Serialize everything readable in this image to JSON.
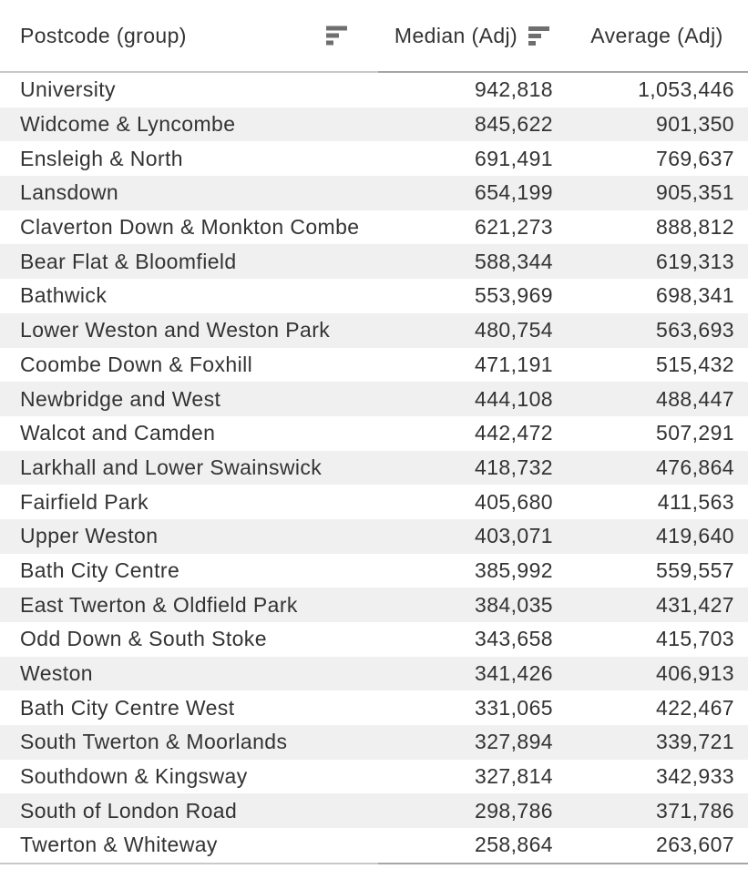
{
  "table": {
    "columns": [
      {
        "label": "Postcode (group)",
        "has_sort_icon": true,
        "sort_icon": "sort-descending"
      },
      {
        "label": "Median (Adj)",
        "has_sort_icon": true,
        "sort_icon": "sort-descending"
      },
      {
        "label": "Average (Adj)",
        "has_sort_icon": false
      }
    ],
    "rows": [
      {
        "name": "University",
        "median": "942,818",
        "average": "1,053,446"
      },
      {
        "name": "Widcome & Lyncombe",
        "median": "845,622",
        "average": "901,350"
      },
      {
        "name": "Ensleigh & North",
        "median": "691,491",
        "average": "769,637"
      },
      {
        "name": "Lansdown",
        "median": "654,199",
        "average": "905,351"
      },
      {
        "name": "Claverton Down & Monkton Combe",
        "median": "621,273",
        "average": "888,812"
      },
      {
        "name": "Bear Flat & Bloomfield",
        "median": "588,344",
        "average": "619,313"
      },
      {
        "name": "Bathwick",
        "median": "553,969",
        "average": "698,341"
      },
      {
        "name": "Lower Weston and Weston Park",
        "median": "480,754",
        "average": "563,693"
      },
      {
        "name": "Coombe Down & Foxhill",
        "median": "471,191",
        "average": "515,432"
      },
      {
        "name": "Newbridge and West",
        "median": "444,108",
        "average": "488,447"
      },
      {
        "name": "Walcot and Camden",
        "median": "442,472",
        "average": "507,291"
      },
      {
        "name": "Larkhall and Lower Swainswick",
        "median": "418,732",
        "average": "476,864"
      },
      {
        "name": "Fairfield Park",
        "median": "405,680",
        "average": "411,563"
      },
      {
        "name": "Upper Weston",
        "median": "403,071",
        "average": "419,640"
      },
      {
        "name": "Bath City Centre",
        "median": "385,992",
        "average": "559,557"
      },
      {
        "name": "East Twerton & Oldfield Park",
        "median": "384,035",
        "average": "431,427"
      },
      {
        "name": "Odd Down & South Stoke",
        "median": "343,658",
        "average": "415,703"
      },
      {
        "name": "Weston",
        "median": "341,426",
        "average": "406,913"
      },
      {
        "name": "Bath City Centre West",
        "median": "331,065",
        "average": "422,467"
      },
      {
        "name": "South Twerton & Moorlands",
        "median": "327,894",
        "average": "339,721"
      },
      {
        "name": "Southdown & Kingsway",
        "median": "327,814",
        "average": "342,933"
      },
      {
        "name": "South of London Road",
        "median": "298,786",
        "average": "371,786"
      },
      {
        "name": "Twerton & Whiteway",
        "median": "258,864",
        "average": "263,607"
      }
    ]
  },
  "chart_data": {
    "type": "table",
    "columns": [
      "Postcode (group)",
      "Median (Adj)",
      "Average (Adj)"
    ],
    "sort": {
      "column": "Median (Adj)",
      "direction": "descending"
    },
    "categories": [
      "University",
      "Widcome & Lyncombe",
      "Ensleigh & North",
      "Lansdown",
      "Claverton Down & Monkton Combe",
      "Bear Flat & Bloomfield",
      "Bathwick",
      "Lower Weston and Weston Park",
      "Coombe Down & Foxhill",
      "Newbridge and West",
      "Walcot and Camden",
      "Larkhall and Lower Swainswick",
      "Fairfield Park",
      "Upper Weston",
      "Bath City Centre",
      "East Twerton & Oldfield Park",
      "Odd Down & South Stoke",
      "Weston",
      "Bath City Centre West",
      "South Twerton & Moorlands",
      "Southdown & Kingsway",
      "South of London Road",
      "Twerton & Whiteway"
    ],
    "series": [
      {
        "name": "Median (Adj)",
        "values": [
          942818,
          845622,
          691491,
          654199,
          621273,
          588344,
          553969,
          480754,
          471191,
          444108,
          442472,
          418732,
          405680,
          403071,
          385992,
          384035,
          343658,
          341426,
          331065,
          327894,
          327814,
          298786,
          258864
        ]
      },
      {
        "name": "Average (Adj)",
        "values": [
          1053446,
          901350,
          769637,
          905351,
          888812,
          619313,
          698341,
          563693,
          515432,
          488447,
          507291,
          476864,
          411563,
          419640,
          559557,
          431427,
          415703,
          406913,
          422467,
          339721,
          342933,
          371786,
          263607
        ]
      }
    ]
  },
  "colors": {
    "text": "#333333",
    "row_stripe": "#f0f0f0",
    "background": "#ffffff",
    "sort_icon": "#6f6f6f",
    "divider_left": "#c9c9c9",
    "divider_right": "#a6a6a6"
  }
}
